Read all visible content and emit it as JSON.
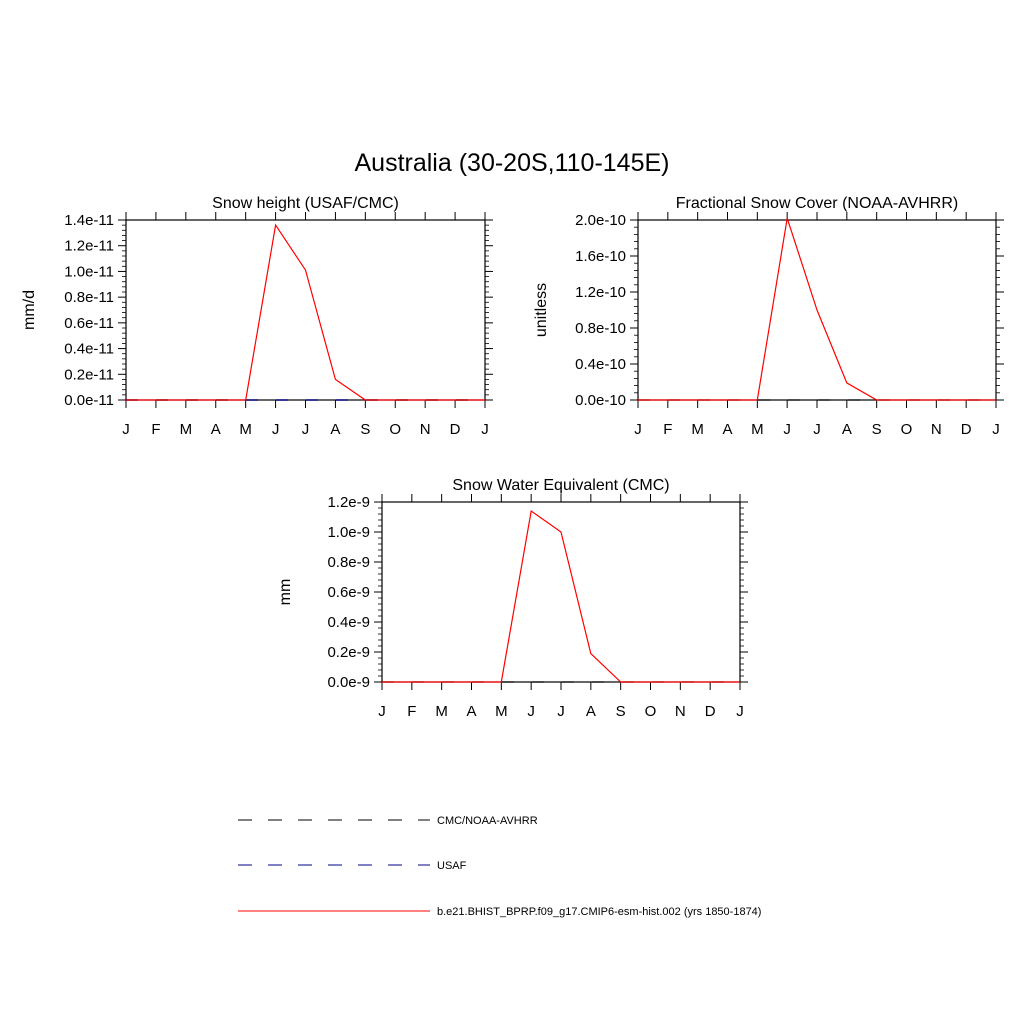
{
  "figure_title": "Australia (30-20S,110-145E)",
  "colors": {
    "model": "#ff0000",
    "cmc_noaa": "#000000",
    "usaf": "#00008b",
    "axes": "#000000"
  },
  "legend": {
    "items": [
      {
        "label": "CMC/NOAA-AVHRR",
        "color": "#000000",
        "style": "dashed"
      },
      {
        "label": "USAF",
        "color": "#00008b",
        "style": "dashed"
      },
      {
        "label": "b.e21.BHIST_BPRP.f09_g17.CMIP6-esm-hist.002 (yrs 1850-1874)",
        "color": "#ff0000",
        "style": "solid"
      }
    ]
  },
  "chart_data": [
    {
      "type": "line",
      "title": "Snow height (USAF/CMC)",
      "ylabel": "mm/d",
      "xlabel": "",
      "categories": [
        "J",
        "F",
        "M",
        "A",
        "M",
        "J",
        "J",
        "A",
        "S",
        "O",
        "N",
        "D",
        "J"
      ],
      "ylim": [
        0,
        1.4e-11
      ],
      "yticks": [
        0,
        2e-12,
        4e-12,
        6e-12,
        8e-12,
        1e-11,
        1.2e-11,
        1.4e-11
      ],
      "ytick_labels": [
        "0.0e-11",
        "0.2e-11",
        "0.4e-11",
        "0.6e-11",
        "0.8e-11",
        "1.0e-11",
        "1.2e-11",
        "1.4e-11"
      ],
      "series": [
        {
          "legend_index": 2,
          "values": [
            0,
            0,
            0,
            0,
            0,
            1.36e-11,
            1.01e-11,
            1.6e-12,
            0,
            0,
            0,
            0,
            0
          ]
        },
        {
          "legend_index": 0,
          "values": [
            0,
            0,
            0,
            0,
            0,
            0,
            0,
            0,
            0,
            0,
            0,
            0,
            0
          ]
        },
        {
          "legend_index": 1,
          "values": [
            0,
            0,
            0,
            0,
            0,
            0,
            0,
            0,
            0,
            0,
            0,
            0,
            0
          ]
        }
      ]
    },
    {
      "type": "line",
      "title": "Fractional Snow Cover (NOAA-AVHRR)",
      "ylabel": "unitless",
      "xlabel": "",
      "categories": [
        "J",
        "F",
        "M",
        "A",
        "M",
        "J",
        "J",
        "A",
        "S",
        "O",
        "N",
        "D",
        "J"
      ],
      "ylim": [
        0,
        2e-10
      ],
      "yticks": [
        0,
        4e-11,
        8e-11,
        1.2e-10,
        1.6e-10,
        2e-10
      ],
      "ytick_labels": [
        "0.0e-10",
        "0.4e-10",
        "0.8e-10",
        "1.2e-10",
        "1.6e-10",
        "2.0e-10"
      ],
      "series": [
        {
          "legend_index": 2,
          "values": [
            0,
            0,
            0,
            0,
            0,
            2.02e-10,
            1e-10,
            1.9e-11,
            0,
            0,
            0,
            0,
            0
          ]
        },
        {
          "legend_index": 0,
          "values": [
            0,
            0,
            0,
            0,
            0,
            0,
            0,
            0,
            0,
            0,
            0,
            0,
            0
          ]
        }
      ]
    },
    {
      "type": "line",
      "title": "Snow Water Equivalent (CMC)",
      "ylabel": "mm",
      "xlabel": "",
      "categories": [
        "J",
        "F",
        "M",
        "A",
        "M",
        "J",
        "J",
        "A",
        "S",
        "O",
        "N",
        "D",
        "J"
      ],
      "ylim": [
        0,
        1.2e-09
      ],
      "yticks": [
        0,
        2e-10,
        4e-10,
        6e-10,
        8e-10,
        1e-09,
        1.2e-09
      ],
      "ytick_labels": [
        "0.0e-9",
        "0.2e-9",
        "0.4e-9",
        "0.6e-9",
        "0.8e-9",
        "1.0e-9",
        "1.2e-9"
      ],
      "series": [
        {
          "legend_index": 2,
          "values": [
            0,
            0,
            0,
            0,
            0,
            1.14e-09,
            1e-09,
            1.9e-10,
            0,
            0,
            0,
            0,
            0
          ]
        },
        {
          "legend_index": 0,
          "values": [
            0,
            0,
            0,
            0,
            0,
            0,
            0,
            0,
            0,
            0,
            0,
            0,
            0
          ]
        }
      ]
    }
  ]
}
